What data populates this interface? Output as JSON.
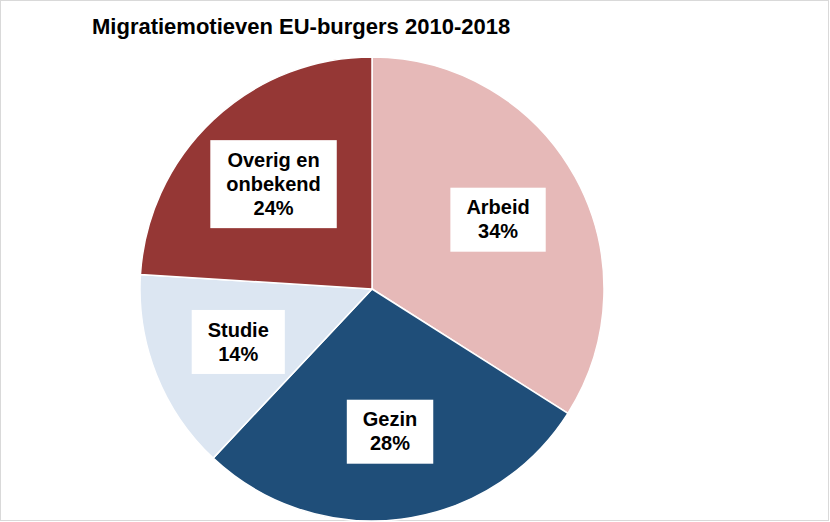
{
  "chart_data": {
    "type": "pie",
    "title": "Migratiemotieven EU-burgers 2010-2018",
    "categories": [
      "Arbeid",
      "Gezin",
      "Studie",
      "Overig en onbekend"
    ],
    "values": [
      34,
      28,
      14,
      24
    ],
    "value_labels": [
      "34%",
      "28%",
      "14%",
      "24%"
    ],
    "colors": [
      "#e6b9b8",
      "#1f4e79",
      "#dce6f2",
      "#953735"
    ],
    "data_labels": true
  }
}
